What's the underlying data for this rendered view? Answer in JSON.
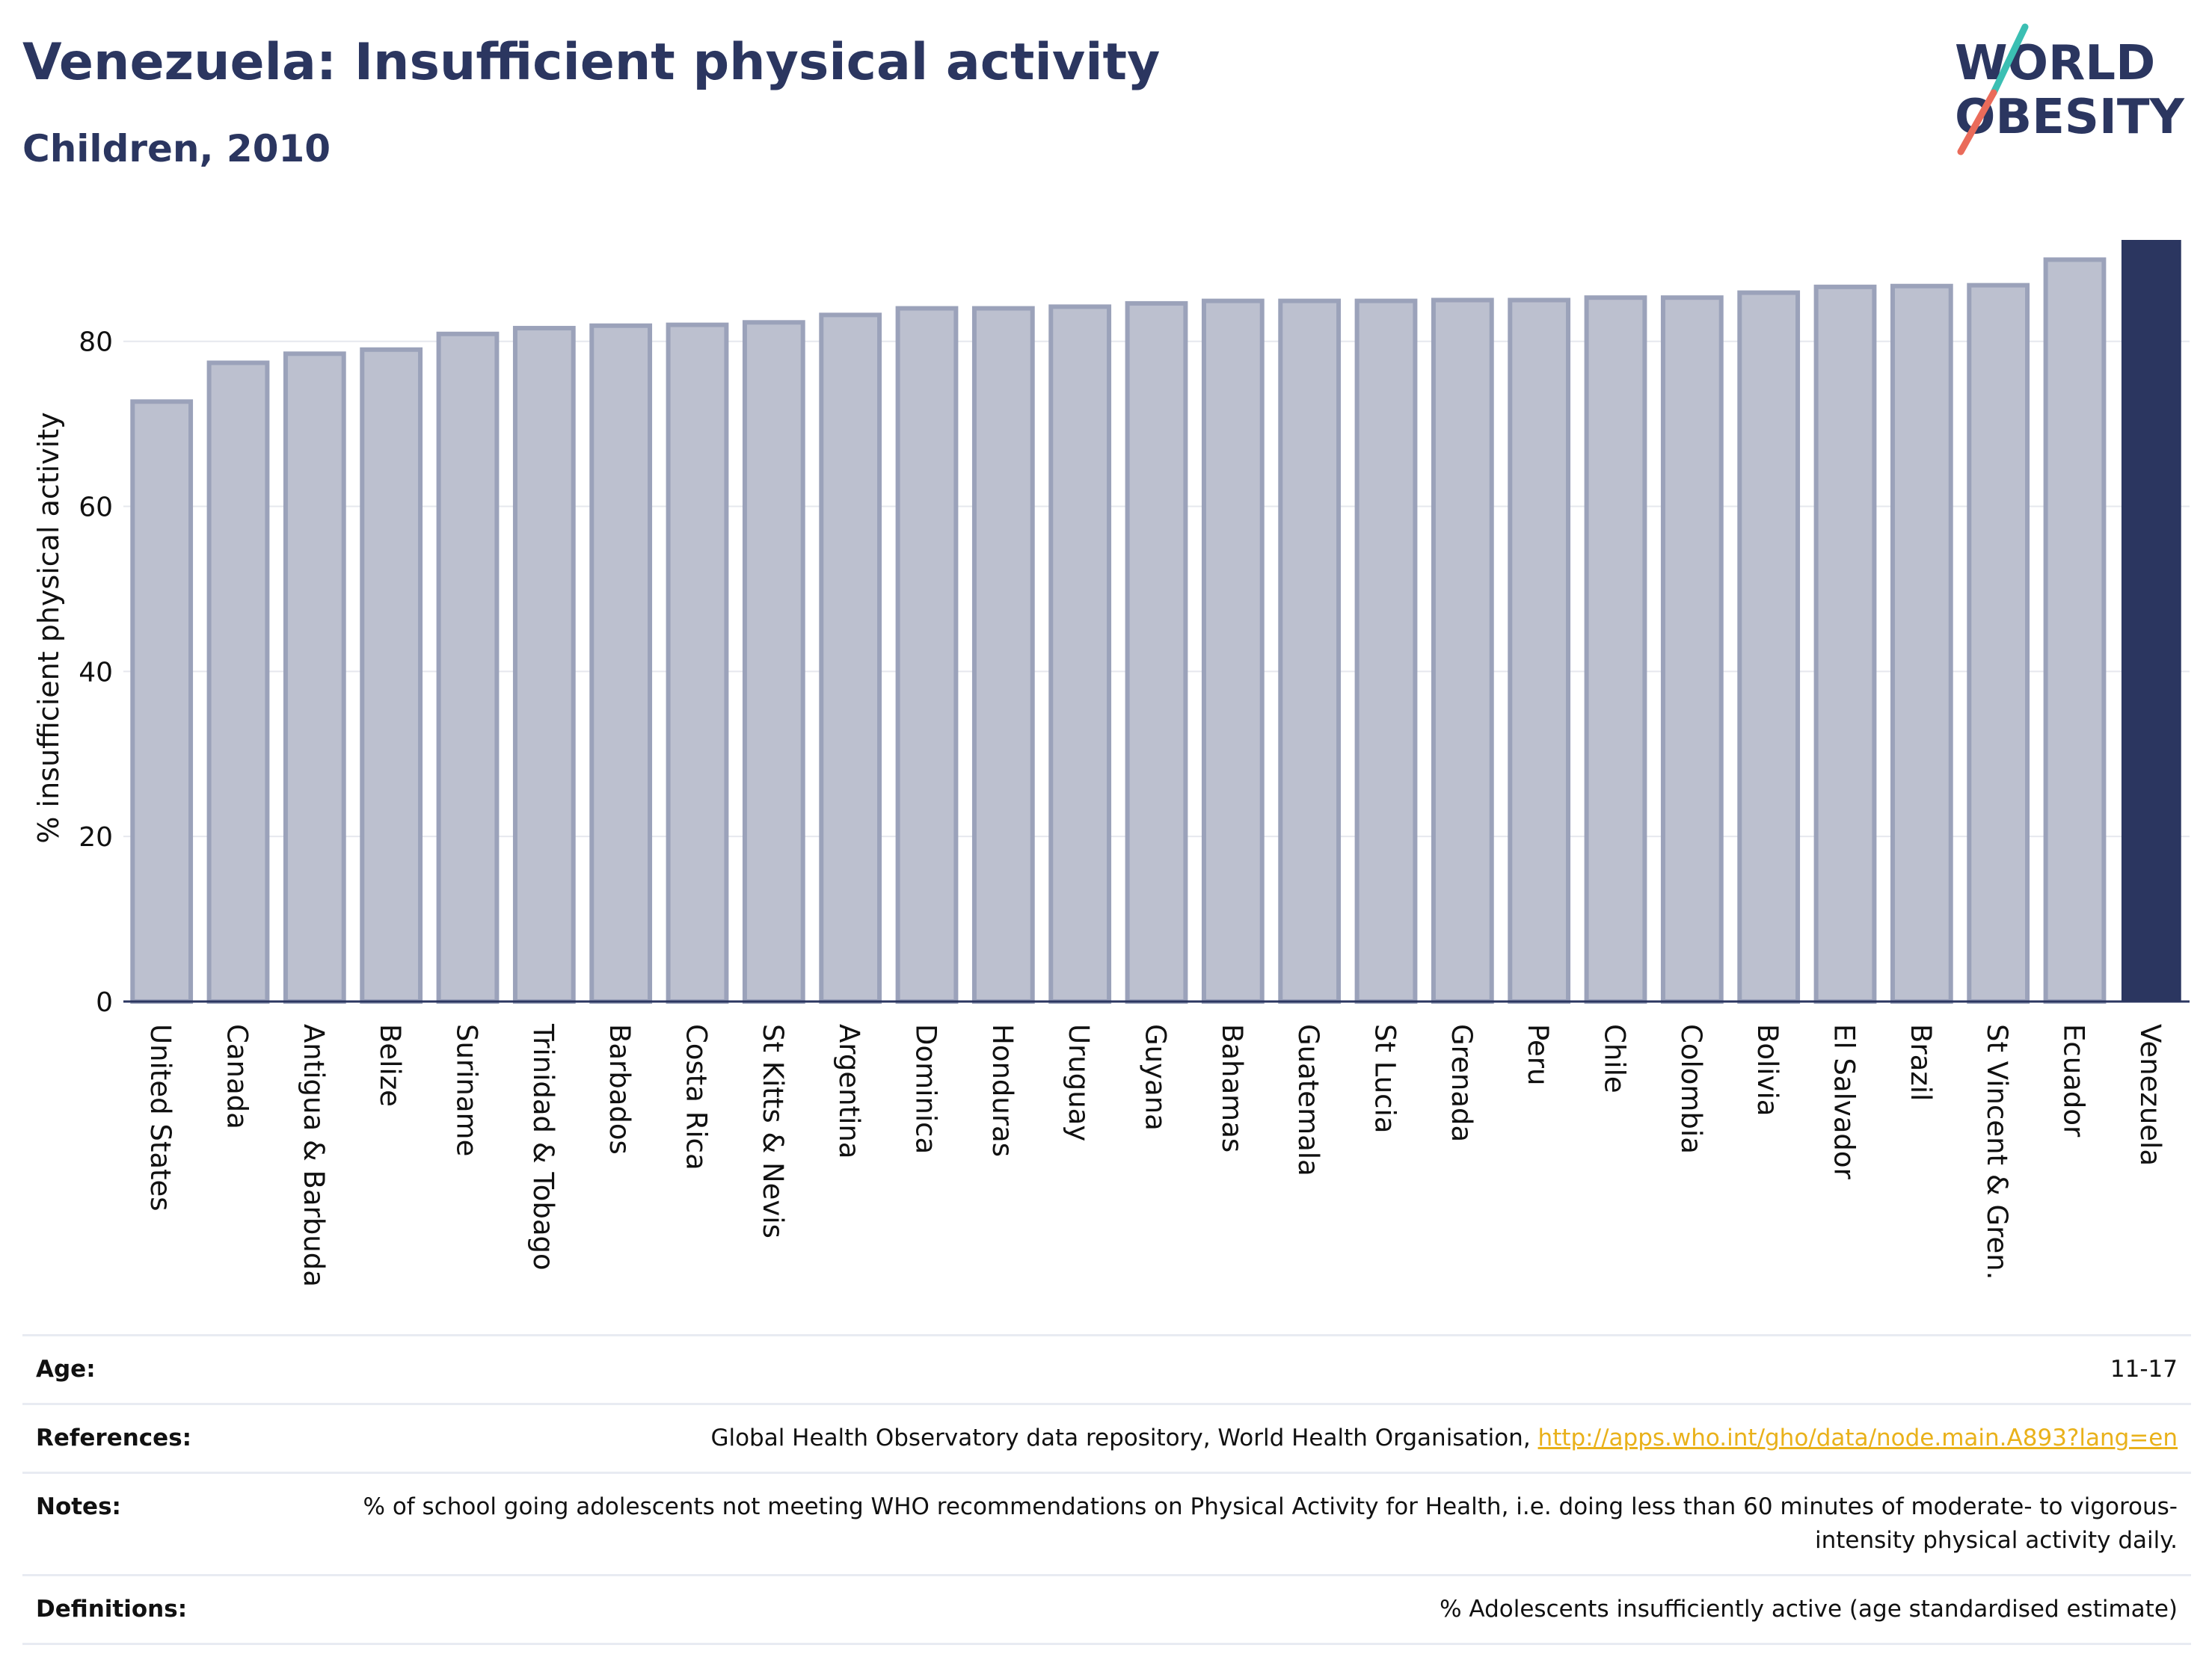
{
  "header": {
    "title": "Venezuela: Insufficient physical activity",
    "subtitle": "Children, 2010"
  },
  "logo": {
    "line1": "WORLD",
    "line2": "OBESITY",
    "brand_color": "#2b3660",
    "slash_top_color": "#3bbfb3",
    "slash_bottom_color": "#ea6b5a"
  },
  "colors": {
    "bar_fill": "#bcc0cf",
    "bar_stroke": "#9ba2ba",
    "highlight": "#2b3660",
    "link": "#e9b11a"
  },
  "chart_data": {
    "type": "bar",
    "categories": [
      "United States",
      "Canada",
      "Antigua & Barbuda",
      "Belize",
      "Suriname",
      "Trinidad & Tobago",
      "Barbados",
      "Costa Rica",
      "St Kitts & Nevis",
      "Argentina",
      "Dominica",
      "Honduras",
      "Uruguay",
      "Guyana",
      "Bahamas",
      "Guatemala",
      "St Lucia",
      "Grenada",
      "Peru",
      "Chile",
      "Colombia",
      "Bolivia",
      "El Salvador",
      "Brazil",
      "St Vincent & Gren.",
      "Ecuador",
      "Venezuela"
    ],
    "values": [
      72.7,
      77.4,
      78.5,
      79.0,
      80.9,
      81.6,
      81.9,
      82.0,
      82.3,
      83.2,
      84.0,
      84.0,
      84.2,
      84.6,
      84.9,
      84.9,
      84.9,
      85.0,
      85.0,
      85.3,
      85.3,
      85.9,
      86.6,
      86.7,
      86.8,
      89.9,
      92.2
    ],
    "highlight": "Venezuela",
    "ylabel": "% insufficient physical activity",
    "xlabel": "",
    "ylim": [
      0,
      92.2
    ],
    "yticks": [
      0,
      20,
      40,
      60,
      80
    ],
    "grid": true
  },
  "info": {
    "rows": [
      {
        "label": "Age:",
        "value": "11-17"
      },
      {
        "label": "References:",
        "value": "Global Health Observatory data repository, World Health Organisation, ",
        "link": "http://apps.who.int/gho/data/node.main.A893?lang=en"
      },
      {
        "label": "Notes:",
        "value": "% of school going adolescents not meeting WHO recommendations on Physical Activity for Health, i.e. doing less than 60 minutes of moderate- to vigorous-intensity physical activity daily."
      },
      {
        "label": "Definitions:",
        "value": "% Adolescents insufficiently active (age standardised estimate)"
      }
    ]
  }
}
